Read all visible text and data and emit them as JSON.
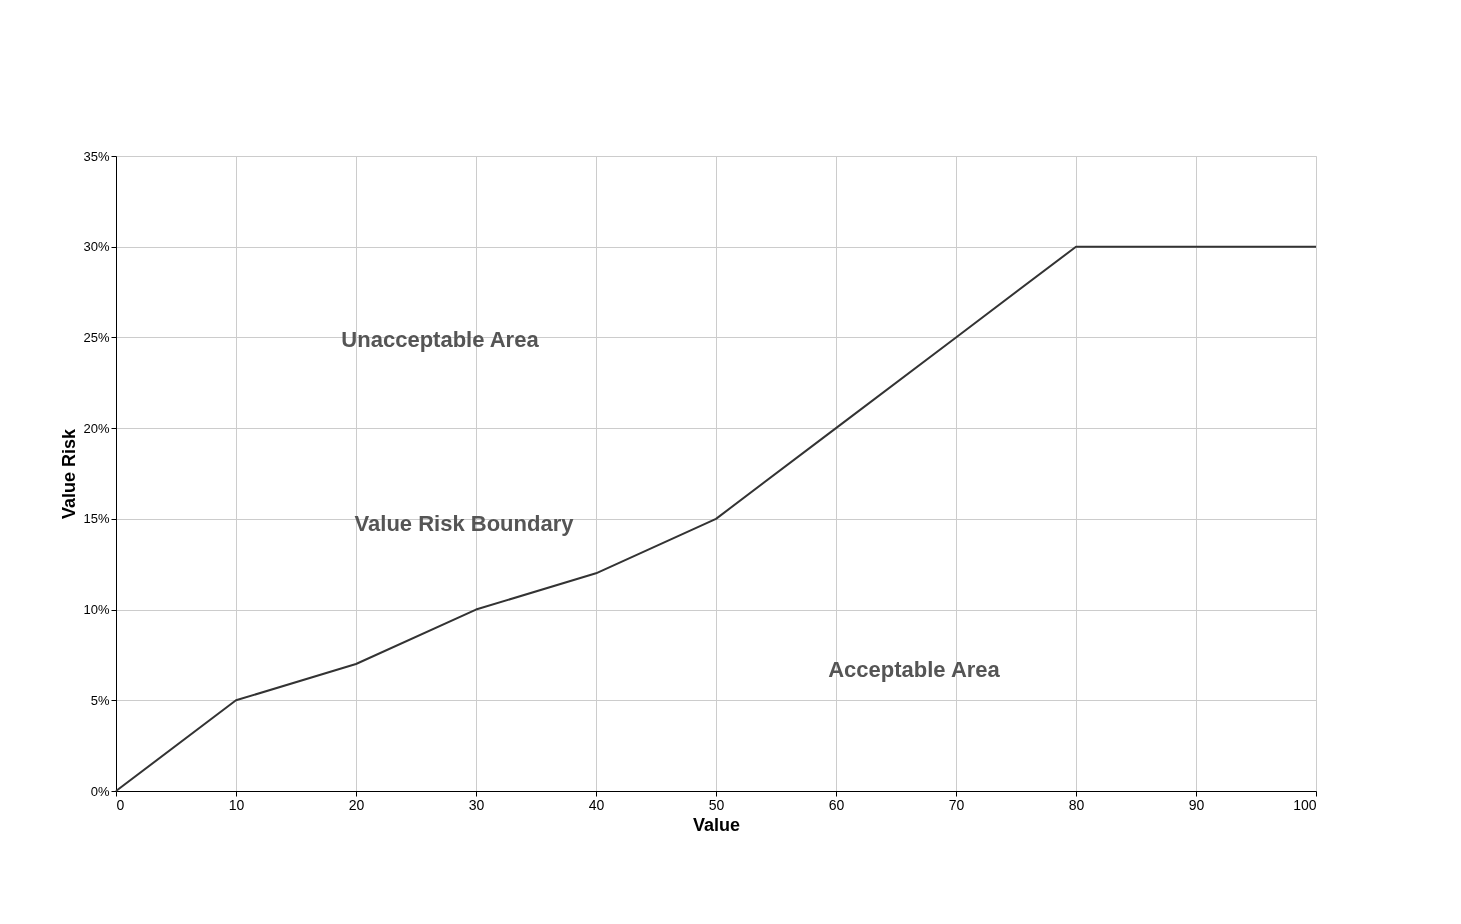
{
  "chart_data": {
    "type": "line",
    "xlabel": "Value",
    "ylabel": "Value Risk",
    "x": [
      0,
      10,
      20,
      30,
      40,
      50,
      60,
      70,
      80,
      100
    ],
    "series": [
      {
        "color": "#333333",
        "values": [
          0,
          5,
          7,
          10,
          12,
          15,
          20,
          25,
          30,
          30
        ]
      }
    ],
    "xlim": [
      0,
      100
    ],
    "xticks": [
      0,
      10,
      20,
      30,
      40,
      50,
      60,
      70,
      80,
      90,
      100
    ],
    "ylim": [
      0,
      35
    ],
    "yticks": [
      {
        "value": 0,
        "label": "0%"
      },
      {
        "value": 5,
        "label": "5%"
      },
      {
        "value": 10,
        "label": "10%"
      },
      {
        "value": 15,
        "label": "15%"
      },
      {
        "value": 20,
        "label": "20%"
      },
      {
        "value": 25,
        "label": "25%"
      },
      {
        "value": 30,
        "label": "30%"
      },
      {
        "value": 35,
        "label": "35%"
      }
    ],
    "grid": true,
    "marker": "none",
    "line_style": "solid",
    "annotations": [
      "Unacceptable Area",
      "Value Risk Boundary",
      "Acceptable Area"
    ]
  }
}
